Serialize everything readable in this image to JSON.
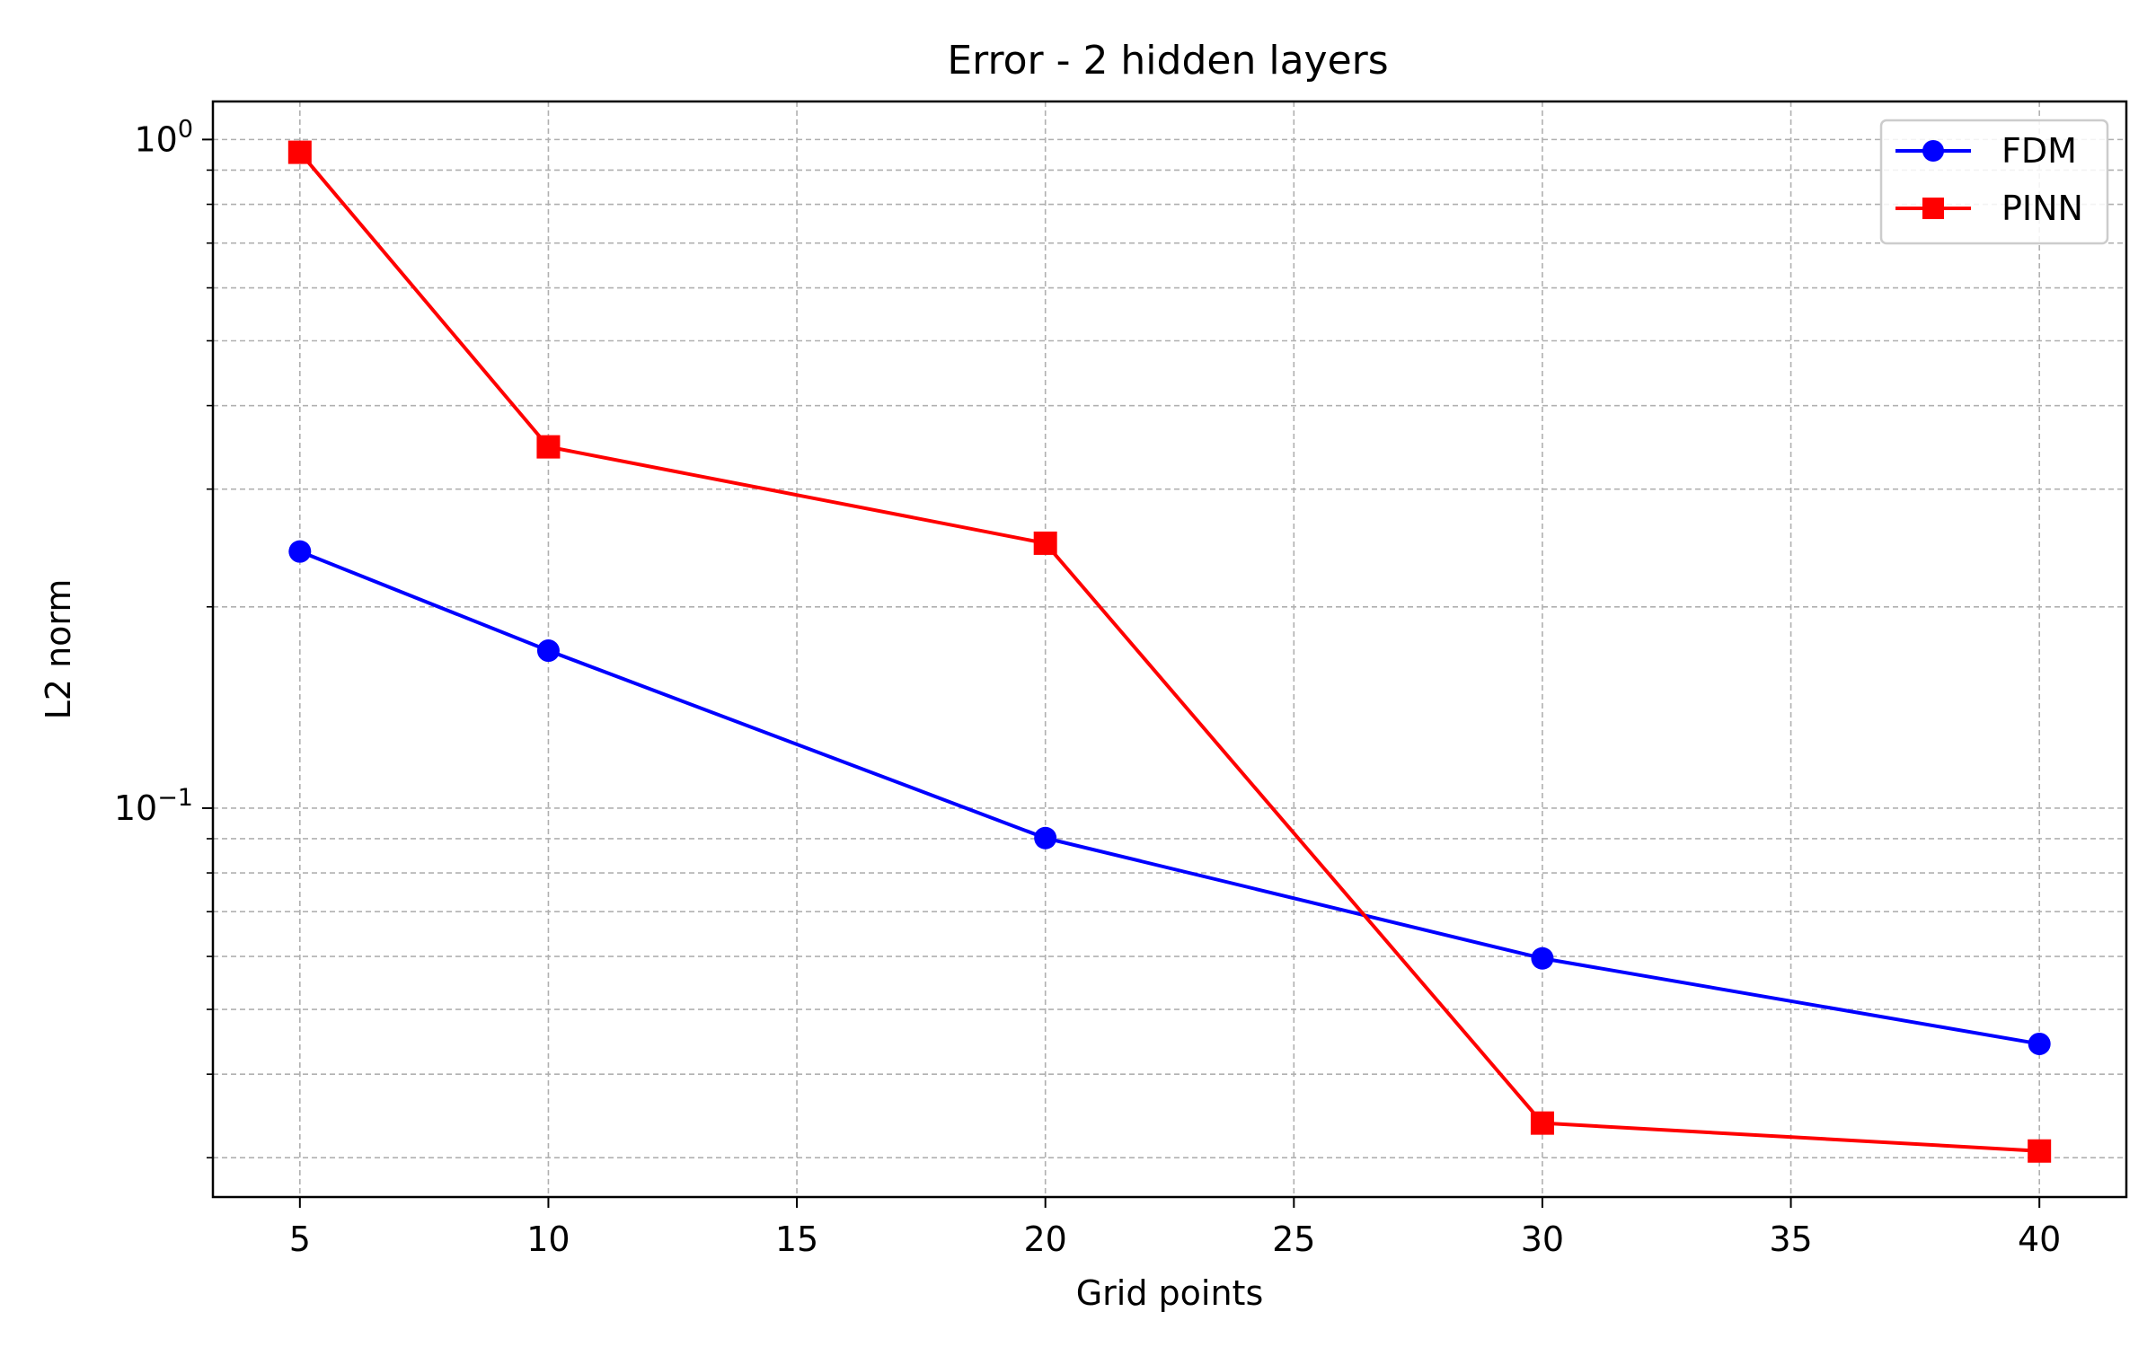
{
  "chart_data": {
    "type": "line",
    "title": "Error - 2 hidden layers",
    "xlabel": "Grid points",
    "ylabel": "L2 norm",
    "yscale": "log",
    "xlim": [
      3.25,
      41.75
    ],
    "ylim": [
      0.0262,
      1.14
    ],
    "xticks": [
      5,
      10,
      15,
      20,
      25,
      30,
      35,
      40
    ],
    "yticks": [
      {
        "value": 1,
        "base": "10",
        "exp": "0"
      },
      {
        "value": 0.1,
        "base": "10",
        "exp": "−1"
      }
    ],
    "grid": true,
    "legend": {
      "placement": "top-right"
    },
    "x": [
      5,
      10,
      20,
      30,
      40
    ],
    "series": [
      {
        "name": "FDM",
        "color": "#0000ff",
        "marker": "circle",
        "values": [
          0.242,
          0.172,
          0.0902,
          0.0596,
          0.0444
        ]
      },
      {
        "name": "PINN",
        "color": "#ff0000",
        "marker": "square",
        "values": [
          0.957,
          0.347,
          0.249,
          0.0338,
          0.0307
        ]
      }
    ]
  }
}
